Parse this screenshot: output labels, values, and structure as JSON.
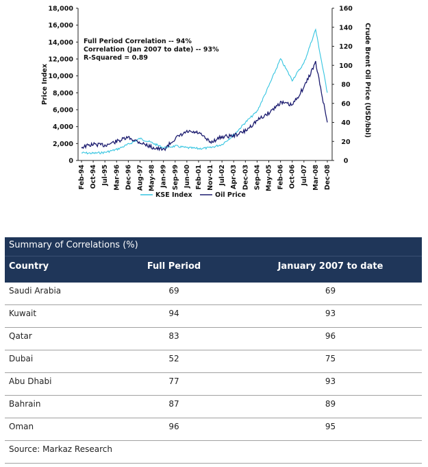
{
  "chart_data": {
    "type": "line",
    "y_left": {
      "label": "Price Index",
      "ticks": [
        "0",
        "2,000",
        "4,000",
        "6,000",
        "8,000",
        "10,000",
        "12,000",
        "14,000",
        "16,000",
        "18,000"
      ],
      "ylim": [
        0,
        18000
      ]
    },
    "y_right": {
      "label": "Crude Brent Oil Price (USD/bbl)",
      "ticks": [
        "0",
        "20",
        "40",
        "60",
        "80",
        "100",
        "120",
        "140",
        "160"
      ],
      "ylim": [
        0,
        160
      ]
    },
    "x_ticks": [
      "Feb-94",
      "Oct-94",
      "Jul-95",
      "Mar-96",
      "Dec-96",
      "Aug-97",
      "May-98",
      "Jan-99",
      "Sep-99",
      "Jun-00",
      "Feb-01",
      "Nov-01",
      "Jul-02",
      "Apr-03",
      "Dec-03",
      "Sep-04",
      "May-05",
      "Feb-06",
      "Oct-06",
      "Jul-07",
      "Mar-08",
      "Dec-08"
    ],
    "annotations": [
      "Full Period Correlation -- 94%",
      "Correlation (Jan 2007 to date) -- 93%",
      "R-Squared = 0.89"
    ],
    "legend": "bottom-center",
    "series": [
      {
        "name": "KSE Index",
        "axis": "left",
        "color": "#33c4e0",
        "points": [
          [
            "Feb-94",
            900
          ],
          [
            "Oct-94",
            850
          ],
          [
            "Jul-95",
            950
          ],
          [
            "Mar-96",
            1300
          ],
          [
            "Dec-96",
            1900
          ],
          [
            "Aug-97",
            2600
          ],
          [
            "May-98",
            2100
          ],
          [
            "Jan-99",
            1500
          ],
          [
            "Sep-99",
            1700
          ],
          [
            "Jun-00",
            1500
          ],
          [
            "Feb-01",
            1400
          ],
          [
            "Nov-01",
            1500
          ],
          [
            "Jul-02",
            1900
          ],
          [
            "Apr-03",
            3000
          ],
          [
            "Dec-03",
            4500
          ],
          [
            "Sep-04",
            5800
          ],
          [
            "May-05",
            8800
          ],
          [
            "Feb-06",
            12000
          ],
          [
            "Oct-06",
            9500
          ],
          [
            "Jul-07",
            11500
          ],
          [
            "Mar-08",
            15500
          ],
          [
            "Dec-08",
            8000
          ]
        ]
      },
      {
        "name": "Oil Price",
        "axis": "right",
        "color": "#1a1a6e",
        "points": [
          [
            "Feb-94",
            14
          ],
          [
            "Oct-94",
            17
          ],
          [
            "Jul-95",
            16
          ],
          [
            "Mar-96",
            20
          ],
          [
            "Dec-96",
            24
          ],
          [
            "Aug-97",
            19
          ],
          [
            "May-98",
            14
          ],
          [
            "Jan-99",
            11
          ],
          [
            "Sep-99",
            23
          ],
          [
            "Jun-00",
            30
          ],
          [
            "Feb-01",
            29
          ],
          [
            "Nov-01",
            19
          ],
          [
            "Jul-02",
            25
          ],
          [
            "Apr-03",
            26
          ],
          [
            "Dec-03",
            31
          ],
          [
            "Sep-04",
            42
          ],
          [
            "May-05",
            50
          ],
          [
            "Feb-06",
            61
          ],
          [
            "Oct-06",
            58
          ],
          [
            "Jul-07",
            77
          ],
          [
            "Mar-08",
            103
          ],
          [
            "Dec-08",
            40
          ]
        ]
      }
    ]
  },
  "table": {
    "title": "Summary of Correlations (%)",
    "columns": [
      "Country",
      "Full Period",
      "January 2007 to date"
    ],
    "rows": [
      [
        "Saudi Arabia",
        "69",
        "69"
      ],
      [
        "Kuwait",
        "94",
        "93"
      ],
      [
        "Qatar",
        "83",
        "96"
      ],
      [
        "Dubai",
        "52",
        "75"
      ],
      [
        "Abu Dhabi",
        "77",
        "93"
      ],
      [
        "Bahrain",
        "87",
        "89"
      ],
      [
        "Oman",
        "96",
        "95"
      ]
    ],
    "source": "Source: Markaz Research"
  }
}
